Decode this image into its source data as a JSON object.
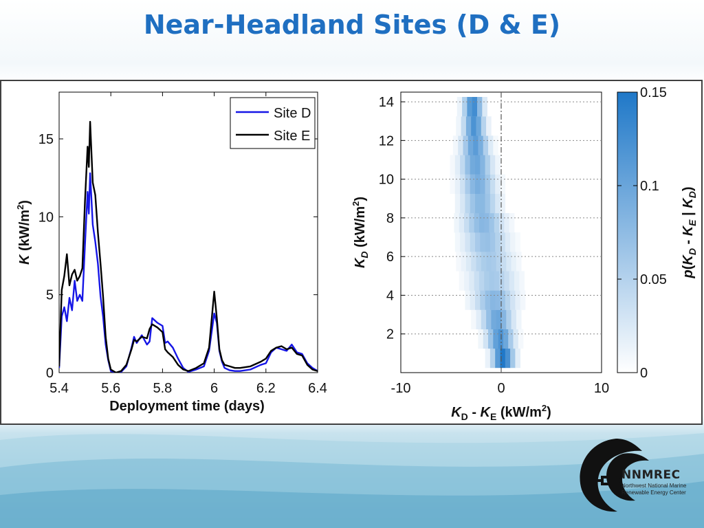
{
  "slide": {
    "title": "Near-Headland Sites (D & E)",
    "logo_name": "NNMREC",
    "logo_sub1": "Northwest National Marine",
    "logo_sub2": "Renewable Energy Center"
  },
  "colors": {
    "title": "#1f6fc1",
    "site_d": "#1515e6",
    "site_e": "#000000",
    "hist_max": "#1f78c8"
  },
  "chart_data": [
    {
      "type": "line",
      "xlabel": "Deployment time (days)",
      "ylabel_var": "K",
      "ylabel_unit": " (kW/m",
      "ylabel_exp": "2",
      "ylabel_close": ")",
      "xlim": [
        5.4,
        6.4
      ],
      "ylim": [
        0,
        18
      ],
      "xticks": [
        "5.4",
        "5.6",
        "5.8",
        "6",
        "6.2",
        "6.4"
      ],
      "xtick_values": [
        5.4,
        5.6,
        5.8,
        6.0,
        6.2,
        6.4
      ],
      "yticks": [
        "0",
        "5",
        "10",
        "15"
      ],
      "ytick_values": [
        0,
        5,
        10,
        15
      ],
      "legend_position": "top-right",
      "series": [
        {
          "name": "Site D",
          "color": "#1515e6",
          "x": [
            5.4,
            5.41,
            5.42,
            5.43,
            5.44,
            5.45,
            5.46,
            5.47,
            5.48,
            5.49,
            5.5,
            5.51,
            5.515,
            5.52,
            5.53,
            5.54,
            5.55,
            5.56,
            5.57,
            5.58,
            5.59,
            5.6,
            5.62,
            5.64,
            5.66,
            5.68,
            5.69,
            5.7,
            5.72,
            5.74,
            5.75,
            5.76,
            5.78,
            5.8,
            5.81,
            5.82,
            5.84,
            5.86,
            5.88,
            5.9,
            5.93,
            5.96,
            5.98,
            6.0,
            6.01,
            6.02,
            6.03,
            6.04,
            6.06,
            6.08,
            6.1,
            6.14,
            6.18,
            6.2,
            6.22,
            6.24,
            6.26,
            6.28,
            6.3,
            6.32,
            6.34,
            6.36,
            6.38,
            6.4
          ],
          "y": [
            0.3,
            3.6,
            4.2,
            3.3,
            4.8,
            4.0,
            5.9,
            4.6,
            5.0,
            4.6,
            8.2,
            11.6,
            10.2,
            12.8,
            9.5,
            8.4,
            7.0,
            4.9,
            3.6,
            1.8,
            0.8,
            0.1,
            0.0,
            0.05,
            0.4,
            1.6,
            2.3,
            1.9,
            2.4,
            1.8,
            2.0,
            3.5,
            3.2,
            3.0,
            1.9,
            2.0,
            1.6,
            0.9,
            0.3,
            0.05,
            0.2,
            0.4,
            1.4,
            3.8,
            3.2,
            1.4,
            0.7,
            0.3,
            0.15,
            0.1,
            0.1,
            0.2,
            0.5,
            0.6,
            1.3,
            1.6,
            1.5,
            1.4,
            1.8,
            1.3,
            1.2,
            0.6,
            0.3,
            0.1
          ]
        },
        {
          "name": "Site E",
          "color": "#000000",
          "x": [
            5.4,
            5.41,
            5.42,
            5.43,
            5.44,
            5.45,
            5.46,
            5.47,
            5.48,
            5.49,
            5.5,
            5.51,
            5.515,
            5.52,
            5.53,
            5.54,
            5.55,
            5.56,
            5.57,
            5.58,
            5.59,
            5.6,
            5.62,
            5.64,
            5.66,
            5.68,
            5.69,
            5.7,
            5.72,
            5.74,
            5.75,
            5.76,
            5.78,
            5.8,
            5.81,
            5.82,
            5.84,
            5.86,
            5.88,
            5.9,
            5.93,
            5.96,
            5.98,
            6.0,
            6.01,
            6.02,
            6.03,
            6.04,
            6.06,
            6.08,
            6.1,
            6.14,
            6.18,
            6.2,
            6.22,
            6.24,
            6.26,
            6.28,
            6.3,
            6.32,
            6.34,
            6.36,
            6.38,
            6.4
          ],
          "y": [
            0.4,
            5.3,
            6.2,
            7.6,
            5.6,
            6.3,
            6.6,
            5.9,
            6.2,
            6.7,
            11.0,
            14.5,
            13.2,
            16.1,
            12.2,
            11.4,
            9.0,
            7.0,
            4.9,
            2.3,
            0.9,
            0.2,
            0.0,
            0.1,
            0.5,
            1.5,
            2.1,
            2.0,
            2.3,
            2.2,
            2.8,
            3.1,
            2.9,
            2.6,
            1.5,
            1.3,
            1.0,
            0.5,
            0.2,
            0.1,
            0.3,
            0.6,
            1.6,
            5.2,
            3.5,
            1.5,
            0.8,
            0.5,
            0.4,
            0.3,
            0.3,
            0.4,
            0.7,
            0.9,
            1.4,
            1.6,
            1.7,
            1.5,
            1.6,
            1.2,
            1.1,
            0.5,
            0.2,
            0.1
          ]
        }
      ]
    },
    {
      "type": "heatmap",
      "xlabel_a": "K",
      "xlabel_a_sub": "D",
      "xlabel_mid": " - ",
      "xlabel_b": "K",
      "xlabel_b_sub": "E",
      "xlabel_unit": " (kW/m",
      "xlabel_exp": "2",
      "xlabel_close": ")",
      "ylabel_var": "K",
      "ylabel_sub": "D",
      "ylabel_unit": " (kW/m",
      "ylabel_exp": "2",
      "ylabel_close": ")",
      "xlim": [
        -10,
        10
      ],
      "ylim": [
        0,
        14.5
      ],
      "xticks": [
        "-10",
        "0",
        "10"
      ],
      "xtick_values": [
        -10,
        0,
        10
      ],
      "yticks": [
        "2",
        "4",
        "6",
        "8",
        "10",
        "12",
        "14"
      ],
      "ytick_values": [
        2,
        4,
        6,
        8,
        10,
        12,
        14
      ],
      "colorbar": {
        "ticks": [
          "0",
          "0.05",
          "0.1",
          "0.15"
        ],
        "tick_values": [
          0,
          0.05,
          0.1,
          0.15
        ],
        "range": [
          0,
          0.15
        ],
        "label_var": "p",
        "label_open": "(",
        "label_a": "K",
        "label_a_sub": "D",
        "label_mid": " - ",
        "label_b": "K",
        "label_b_sub": "E",
        "label_bar": " | ",
        "label_c": "K",
        "label_c_sub": "D",
        "label_close": ")",
        "color_low": "#ffffff",
        "color_high": "#1f78c8"
      },
      "reference_line_x": 0,
      "bins": [
        {
          "y": 0.75,
          "x_center": 0.2,
          "half_width": 1.8,
          "peak": 0.15
        },
        {
          "y": 1.75,
          "x_center": -0.1,
          "half_width": 2.2,
          "peak": 0.12
        },
        {
          "y": 2.75,
          "x_center": -0.4,
          "half_width": 2.6,
          "peak": 0.1
        },
        {
          "y": 3.75,
          "x_center": -0.7,
          "half_width": 3.4,
          "peak": 0.08
        },
        {
          "y": 4.75,
          "x_center": -0.9,
          "half_width": 3.8,
          "peak": 0.06
        },
        {
          "y": 5.75,
          "x_center": -1.2,
          "half_width": 3.8,
          "peak": 0.06
        },
        {
          "y": 6.75,
          "x_center": -1.5,
          "half_width": 3.6,
          "peak": 0.07
        },
        {
          "y": 7.75,
          "x_center": -1.8,
          "half_width": 3.4,
          "peak": 0.08
        },
        {
          "y": 8.75,
          "x_center": -2.1,
          "half_width": 3.0,
          "peak": 0.08
        },
        {
          "y": 9.75,
          "x_center": -2.3,
          "half_width": 2.8,
          "peak": 0.09
        },
        {
          "y": 10.75,
          "x_center": -2.5,
          "half_width": 2.6,
          "peak": 0.1
        },
        {
          "y": 11.75,
          "x_center": -2.6,
          "half_width": 2.2,
          "peak": 0.11
        },
        {
          "y": 12.75,
          "x_center": -2.7,
          "half_width": 1.8,
          "peak": 0.12
        },
        {
          "y": 13.75,
          "x_center": -2.8,
          "half_width": 1.6,
          "peak": 0.13
        }
      ]
    }
  ]
}
